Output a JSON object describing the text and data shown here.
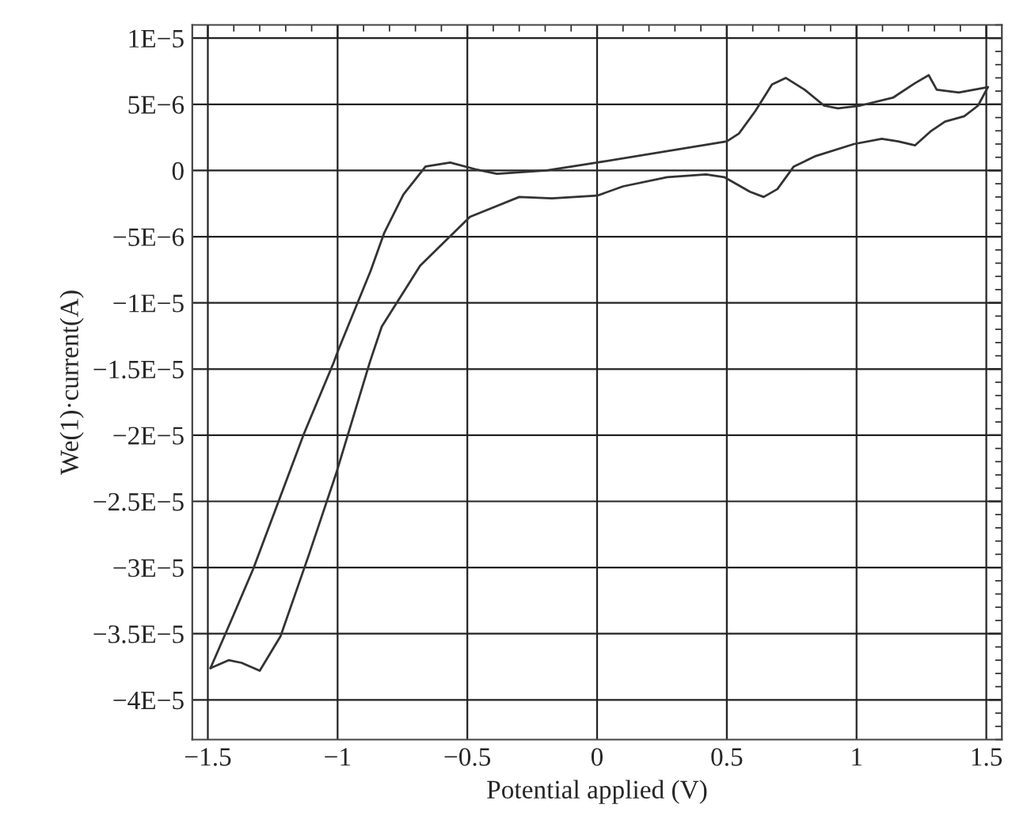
{
  "chart_data": {
    "type": "line",
    "xlabel": "Potential applied (V)",
    "ylabel": "We(1)·current(A)",
    "series": [
      {
        "color": "#333333",
        "x": [
          1.506,
          1.394,
          1.309,
          1.278,
          1.225,
          1.14,
          1.013,
          0.928,
          0.875,
          0.8,
          0.727,
          0.674,
          0.61,
          0.547,
          0.5,
          0,
          -0.195,
          -0.386,
          -0.47,
          -0.566,
          -0.661,
          -0.746,
          -0.82,
          -0.873,
          -0.996,
          -1.015,
          -1.13,
          -1.325,
          -1.41,
          -1.49
        ],
        "values": [
          6.3e-06,
          5.9e-06,
          6.1e-06,
          7.2e-06,
          6.6e-06,
          5.5e-06,
          4.9e-06,
          4.7e-06,
          4.9e-06,
          6.1e-06,
          7e-06,
          6.5e-06,
          4.5e-06,
          2.8e-06,
          2.2e-06,
          6e-07,
          0,
          -2.5e-07,
          1e-07,
          6e-07,
          3e-07,
          -1.8e-06,
          -4.7e-06,
          -7.6e-06,
          -1.35e-05,
          -1.45e-05,
          -1.99e-05,
          -3.01e-05,
          -3.4e-05,
          -3.76e-05
        ]
      },
      {
        "color": "#333333",
        "x": [
          -1.49,
          -1.42,
          -1.37,
          -1.3,
          -1.22,
          -1.11,
          -1.004,
          -0.876,
          -0.83,
          -0.682,
          -0.49,
          -0.3,
          -0.174,
          0,
          0.1,
          0.27,
          0.42,
          0.49,
          0.589,
          0.642,
          0.695,
          0.758,
          0.843,
          0.99,
          1.097,
          1.16,
          1.225,
          1.288,
          1.341,
          1.415,
          1.468,
          1.506
        ],
        "values": [
          -3.76e-05,
          -3.7e-05,
          -3.72e-05,
          -3.78e-05,
          -3.52e-05,
          -2.9e-05,
          -2.28e-05,
          -1.45e-05,
          -1.18e-05,
          -7.2e-06,
          -3.5e-06,
          -2e-06,
          -2.1e-06,
          -1.9e-06,
          -1.2e-06,
          -5e-07,
          -3e-07,
          -5e-07,
          -1.6e-06,
          -2e-06,
          -1.4e-06,
          3e-07,
          1.1e-06,
          2e-06,
          2.4e-06,
          2.2e-06,
          1.9e-06,
          3e-06,
          3.7e-06,
          4.1e-06,
          4.9e-06,
          6.3e-06
        ]
      }
    ],
    "xlim": [
      -1.56,
      1.56
    ],
    "xticks": [
      {
        "value": -1.5,
        "label": "−1.5"
      },
      {
        "value": -1,
        "label": "−1"
      },
      {
        "value": -0.5,
        "label": "−0.5"
      },
      0,
      0.5,
      1,
      1.5
    ],
    "ylim": [
      -4.3e-05,
      1.1e-05
    ],
    "yticks": [
      {
        "value": 1e-05,
        "label": "1E−5"
      },
      {
        "value": 5e-06,
        "label": "5E−6"
      },
      {
        "value": 0,
        "label": "0"
      },
      {
        "value": -5e-06,
        "label": "−5E−6"
      },
      {
        "value": -1e-05,
        "label": "−1E−5"
      },
      {
        "value": -1.5e-05,
        "label": "−1.5E−5"
      },
      {
        "value": -2e-05,
        "label": "−2E−5"
      },
      {
        "value": -2.5e-05,
        "label": "−2.5E−5"
      },
      {
        "value": -3e-05,
        "label": "−3E−5"
      },
      {
        "value": -3.5e-05,
        "label": "−3.5E−5"
      },
      {
        "value": -4e-05,
        "label": "−4E−5"
      }
    ],
    "grid": true,
    "marker": "none",
    "line_style": "solid"
  }
}
